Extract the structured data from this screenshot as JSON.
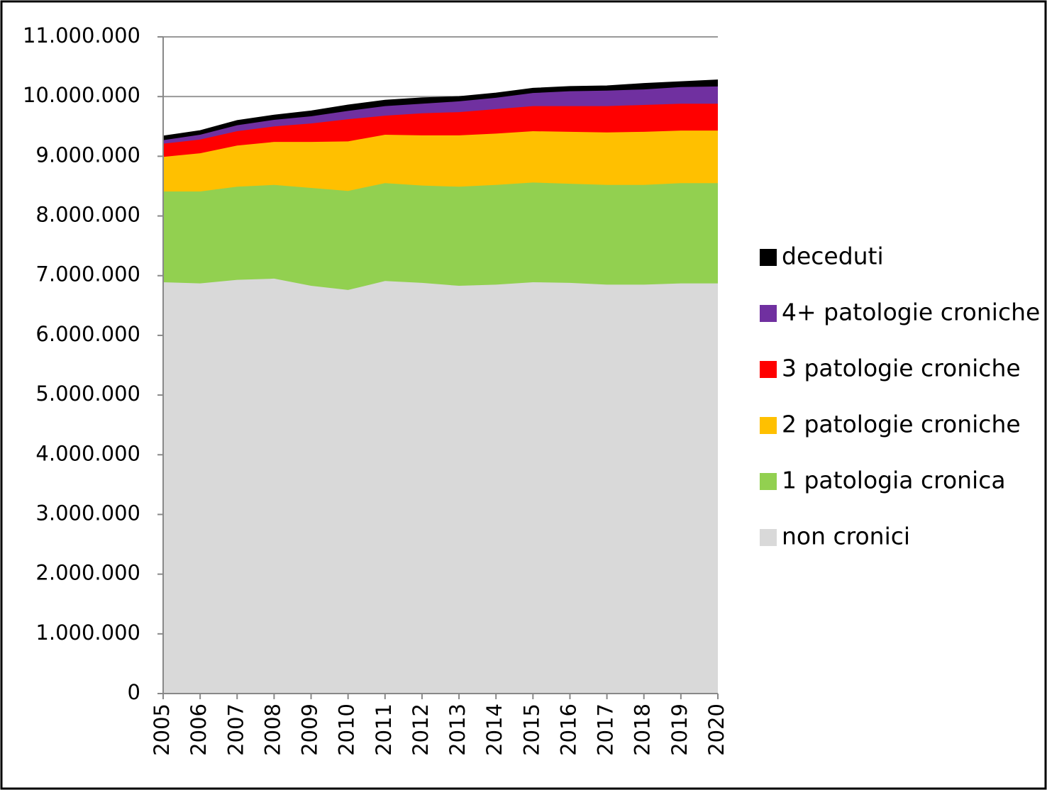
{
  "chart_data": {
    "type": "stacked_area",
    "categories": [
      "2005",
      "2006",
      "2007",
      "2008",
      "2009",
      "2010",
      "2011",
      "2012",
      "2013",
      "2014",
      "2015",
      "2016",
      "2017",
      "2018",
      "2019",
      "2020"
    ],
    "series": [
      {
        "name": "non cronici",
        "color": "#d9d9d9",
        "values": [
          6890000,
          6870000,
          6930000,
          6950000,
          6830000,
          6760000,
          6910000,
          6880000,
          6830000,
          6850000,
          6890000,
          6880000,
          6850000,
          6850000,
          6870000,
          6870000
        ]
      },
      {
        "name": "1 patologia cronica",
        "color": "#92d050",
        "values": [
          1520000,
          1540000,
          1560000,
          1570000,
          1640000,
          1660000,
          1640000,
          1630000,
          1660000,
          1670000,
          1670000,
          1660000,
          1670000,
          1670000,
          1680000,
          1680000
        ]
      },
      {
        "name": "2 patologie croniche",
        "color": "#ffc000",
        "values": [
          580000,
          640000,
          690000,
          720000,
          770000,
          830000,
          810000,
          840000,
          860000,
          860000,
          860000,
          870000,
          880000,
          890000,
          880000,
          880000
        ]
      },
      {
        "name": "3 patologie croniche",
        "color": "#ff0000",
        "values": [
          220000,
          230000,
          240000,
          260000,
          310000,
          370000,
          320000,
          370000,
          390000,
          410000,
          420000,
          430000,
          440000,
          450000,
          450000,
          450000
        ]
      },
      {
        "name": "4+ patologie croniche",
        "color": "#7030a0",
        "values": [
          60000,
          80000,
          100000,
          110000,
          120000,
          140000,
          160000,
          160000,
          180000,
          190000,
          220000,
          250000,
          260000,
          260000,
          280000,
          290000
        ]
      },
      {
        "name": "deceduti",
        "color": "#000000",
        "values": [
          70000,
          70000,
          80000,
          80000,
          90000,
          100000,
          100000,
          100000,
          80000,
          80000,
          80000,
          80000,
          80000,
          100000,
          90000,
          110000
        ]
      }
    ],
    "ylim": [
      0,
      11000000
    ],
    "yticks": [
      0,
      {
        "value": 1000000,
        "label": "1.000.000"
      },
      {
        "value": 2000000,
        "label": "2.000.000"
      },
      {
        "value": 3000000,
        "label": "3.000.000"
      },
      {
        "value": 4000000,
        "label": "4.000.000"
      },
      {
        "value": 5000000,
        "label": "5.000.000"
      },
      {
        "value": 6000000,
        "label": "6.000.000"
      },
      {
        "value": 7000000,
        "label": "7.000.000"
      },
      {
        "value": 8000000,
        "label": "8.000.000"
      },
      {
        "value": 9000000,
        "label": "9.000.000"
      },
      {
        "value": 10000000,
        "label": "10.000.000"
      },
      {
        "value": 11000000,
        "label": "11.000.000"
      }
    ],
    "grid": true,
    "legend": "right"
  }
}
